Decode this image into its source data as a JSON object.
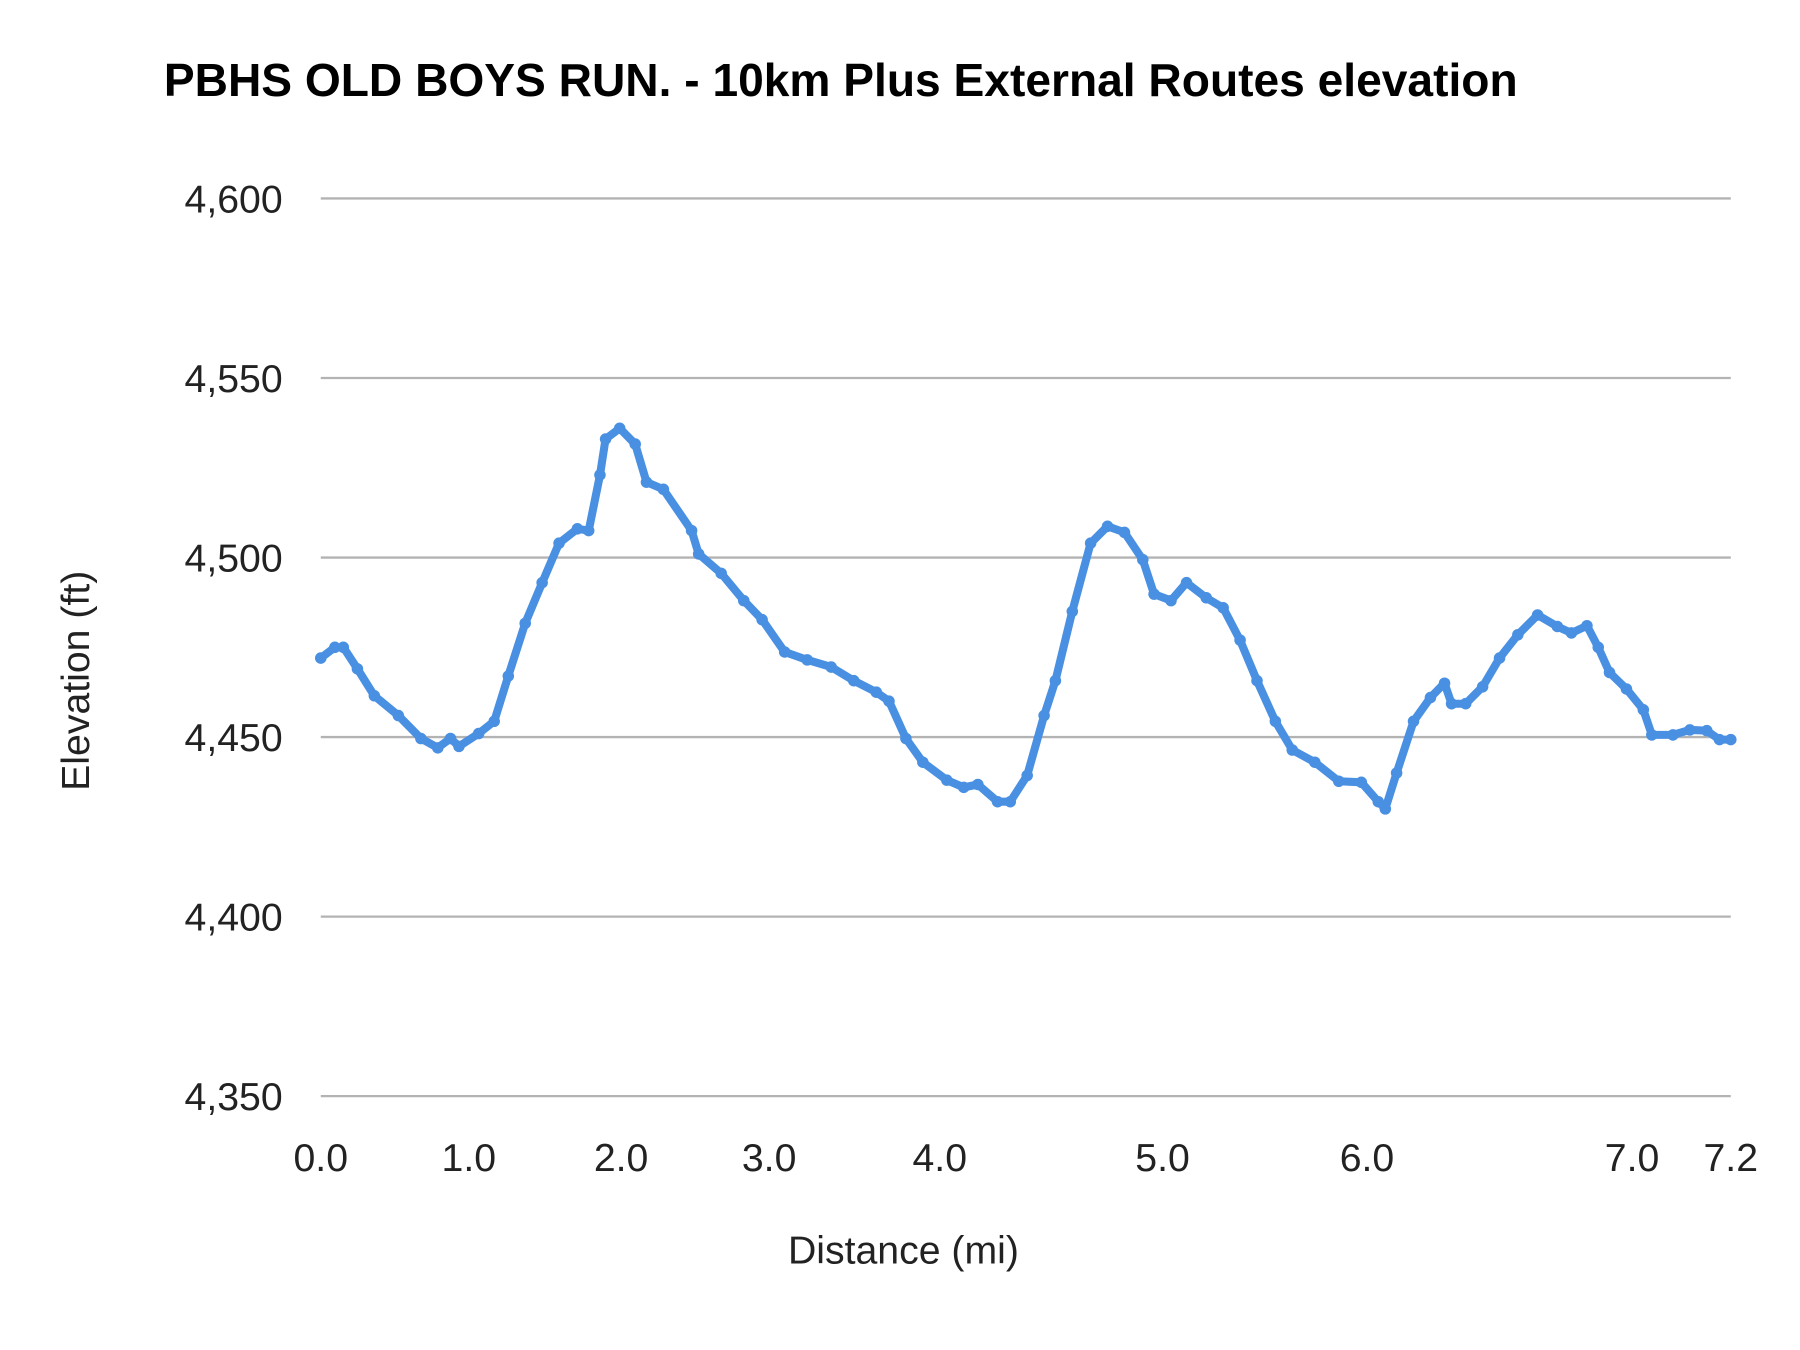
{
  "chart_data": {
    "type": "line",
    "title": "PBHS OLD BOYS RUN. - 10km Plus External Routes elevation",
    "xlabel": "Distance (mi)",
    "ylabel": "Elevation (ft)",
    "ylim": [
      4350,
      4600
    ],
    "yticks": [
      4350,
      4400,
      4450,
      4500,
      4550,
      4600
    ],
    "ytick_labels": [
      "4,350",
      "4,400",
      "4,450",
      "4,500",
      "4,550",
      "4,600"
    ],
    "x_index_range": [
      0,
      1000
    ],
    "xticks": [
      {
        "index": 0,
        "label": "0.0"
      },
      {
        "index": 105,
        "label": "1.0"
      },
      {
        "index": 213,
        "label": "2.0"
      },
      {
        "index": 318,
        "label": "3.0"
      },
      {
        "index": 439,
        "label": "4.0"
      },
      {
        "index": 597,
        "label": "5.0"
      },
      {
        "index": 742,
        "label": "6.0"
      },
      {
        "index": 930,
        "label": "7.0"
      },
      {
        "index": 1000,
        "label": "7.2"
      }
    ],
    "grid": true,
    "legend": "none",
    "series": [
      {
        "name": "Elevation",
        "color": "#4a90e2",
        "points": [
          [
            0,
            4472
          ],
          [
            10,
            4475
          ],
          [
            16,
            4475
          ],
          [
            26,
            4469
          ],
          [
            38,
            4461.5
          ],
          [
            55,
            4456
          ],
          [
            71,
            4449.6
          ],
          [
            83,
            4447
          ],
          [
            92,
            4449.6
          ],
          [
            98,
            4447.4
          ],
          [
            112,
            4451
          ],
          [
            123,
            4454.4
          ],
          [
            133,
            4467
          ],
          [
            145,
            4481.7
          ],
          [
            157,
            4493
          ],
          [
            169,
            4504
          ],
          [
            182,
            4508
          ],
          [
            190,
            4507.5
          ],
          [
            198,
            4523
          ],
          [
            202,
            4533
          ],
          [
            212,
            4536
          ],
          [
            223,
            4531.6
          ],
          [
            231,
            4521
          ],
          [
            243,
            4519
          ],
          [
            263,
            4507.5
          ],
          [
            268,
            4501
          ],
          [
            284,
            4495.6
          ],
          [
            300,
            4488
          ],
          [
            313,
            4482.7
          ],
          [
            329,
            4473.7
          ],
          [
            345,
            4471.5
          ],
          [
            362,
            4469.5
          ],
          [
            378,
            4465.7
          ],
          [
            394,
            4462.5
          ],
          [
            403,
            4460
          ],
          [
            415,
            4449.6
          ],
          [
            427,
            4443
          ],
          [
            444,
            4438
          ],
          [
            456,
            4436
          ],
          [
            466,
            4436.8
          ],
          [
            480,
            4432
          ],
          [
            489,
            4432
          ],
          [
            501,
            4439.3
          ],
          [
            513,
            4456
          ],
          [
            521,
            4465.7
          ],
          [
            533,
            4485
          ],
          [
            546,
            4504
          ],
          [
            558,
            4508.7
          ],
          [
            570,
            4507
          ],
          [
            583,
            4499.4
          ],
          [
            591,
            4489.8
          ],
          [
            603,
            4488
          ],
          [
            614,
            4493
          ],
          [
            628,
            4488.8
          ],
          [
            640,
            4486
          ],
          [
            652,
            4477
          ],
          [
            664,
            4465.7
          ],
          [
            677,
            4454.4
          ],
          [
            689,
            4446.4
          ],
          [
            705,
            4443
          ],
          [
            722,
            4437.7
          ],
          [
            738,
            4437.4
          ],
          [
            750,
            4432
          ],
          [
            755,
            4430
          ],
          [
            763,
            4440
          ],
          [
            775,
            4454.4
          ],
          [
            787,
            4461
          ],
          [
            797,
            4465
          ],
          [
            802,
            4459.3
          ],
          [
            812,
            4459.3
          ],
          [
            824,
            4464
          ],
          [
            836,
            4472
          ],
          [
            849,
            4478.5
          ],
          [
            863,
            4484
          ],
          [
            877,
            4480.8
          ],
          [
            887,
            4479
          ],
          [
            898,
            4481
          ],
          [
            906,
            4475
          ],
          [
            914,
            4468
          ],
          [
            926,
            4463.4
          ],
          [
            938,
            4457.6
          ],
          [
            944,
            4450.6
          ],
          [
            959,
            4450.6
          ],
          [
            971,
            4452
          ],
          [
            983,
            4451.8
          ],
          [
            992,
            4449.3
          ],
          [
            1000,
            4449.3
          ]
        ]
      }
    ]
  }
}
